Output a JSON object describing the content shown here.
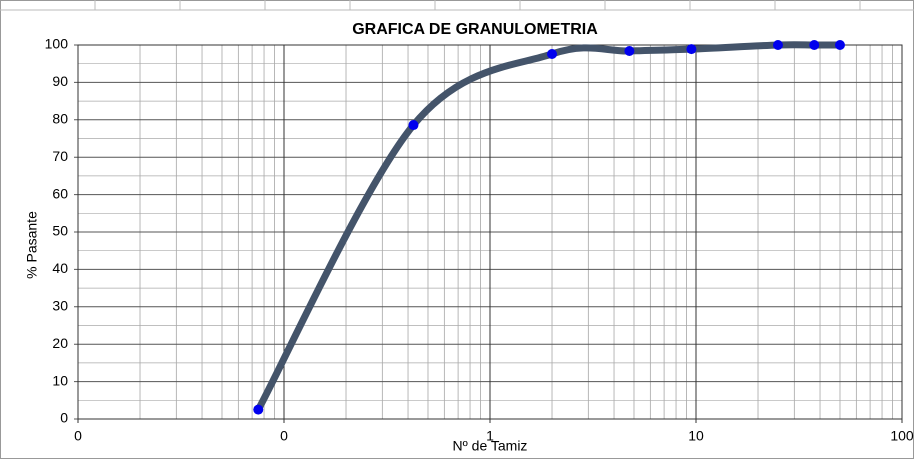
{
  "chart_data": {
    "type": "line",
    "title": "GRAFICA DE GRANULOMETRIA",
    "x_label": "Nº de Tamiz",
    "y_label": "% Pasante",
    "x": [
      0.075,
      0.425,
      2.0,
      4.75,
      9.5,
      25,
      37.5,
      50
    ],
    "values": [
      2.5,
      78.6,
      97.6,
      98.4,
      98.9,
      100,
      100,
      100
    ],
    "color": "#44546a",
    "marker_color": "#0000ee",
    "smooth": true,
    "xscale": "log",
    "xlim": [
      0.01,
      100
    ],
    "xticks": [
      {
        "value": 0.01,
        "label": "0"
      },
      {
        "value": 0.1,
        "label": "0"
      },
      1,
      10,
      100
    ],
    "ylim": [
      0,
      100
    ],
    "yticks": [
      0,
      10,
      20,
      30,
      40,
      50,
      60,
      70,
      80,
      90,
      100
    ],
    "grid": true,
    "minor_grid": true
  }
}
